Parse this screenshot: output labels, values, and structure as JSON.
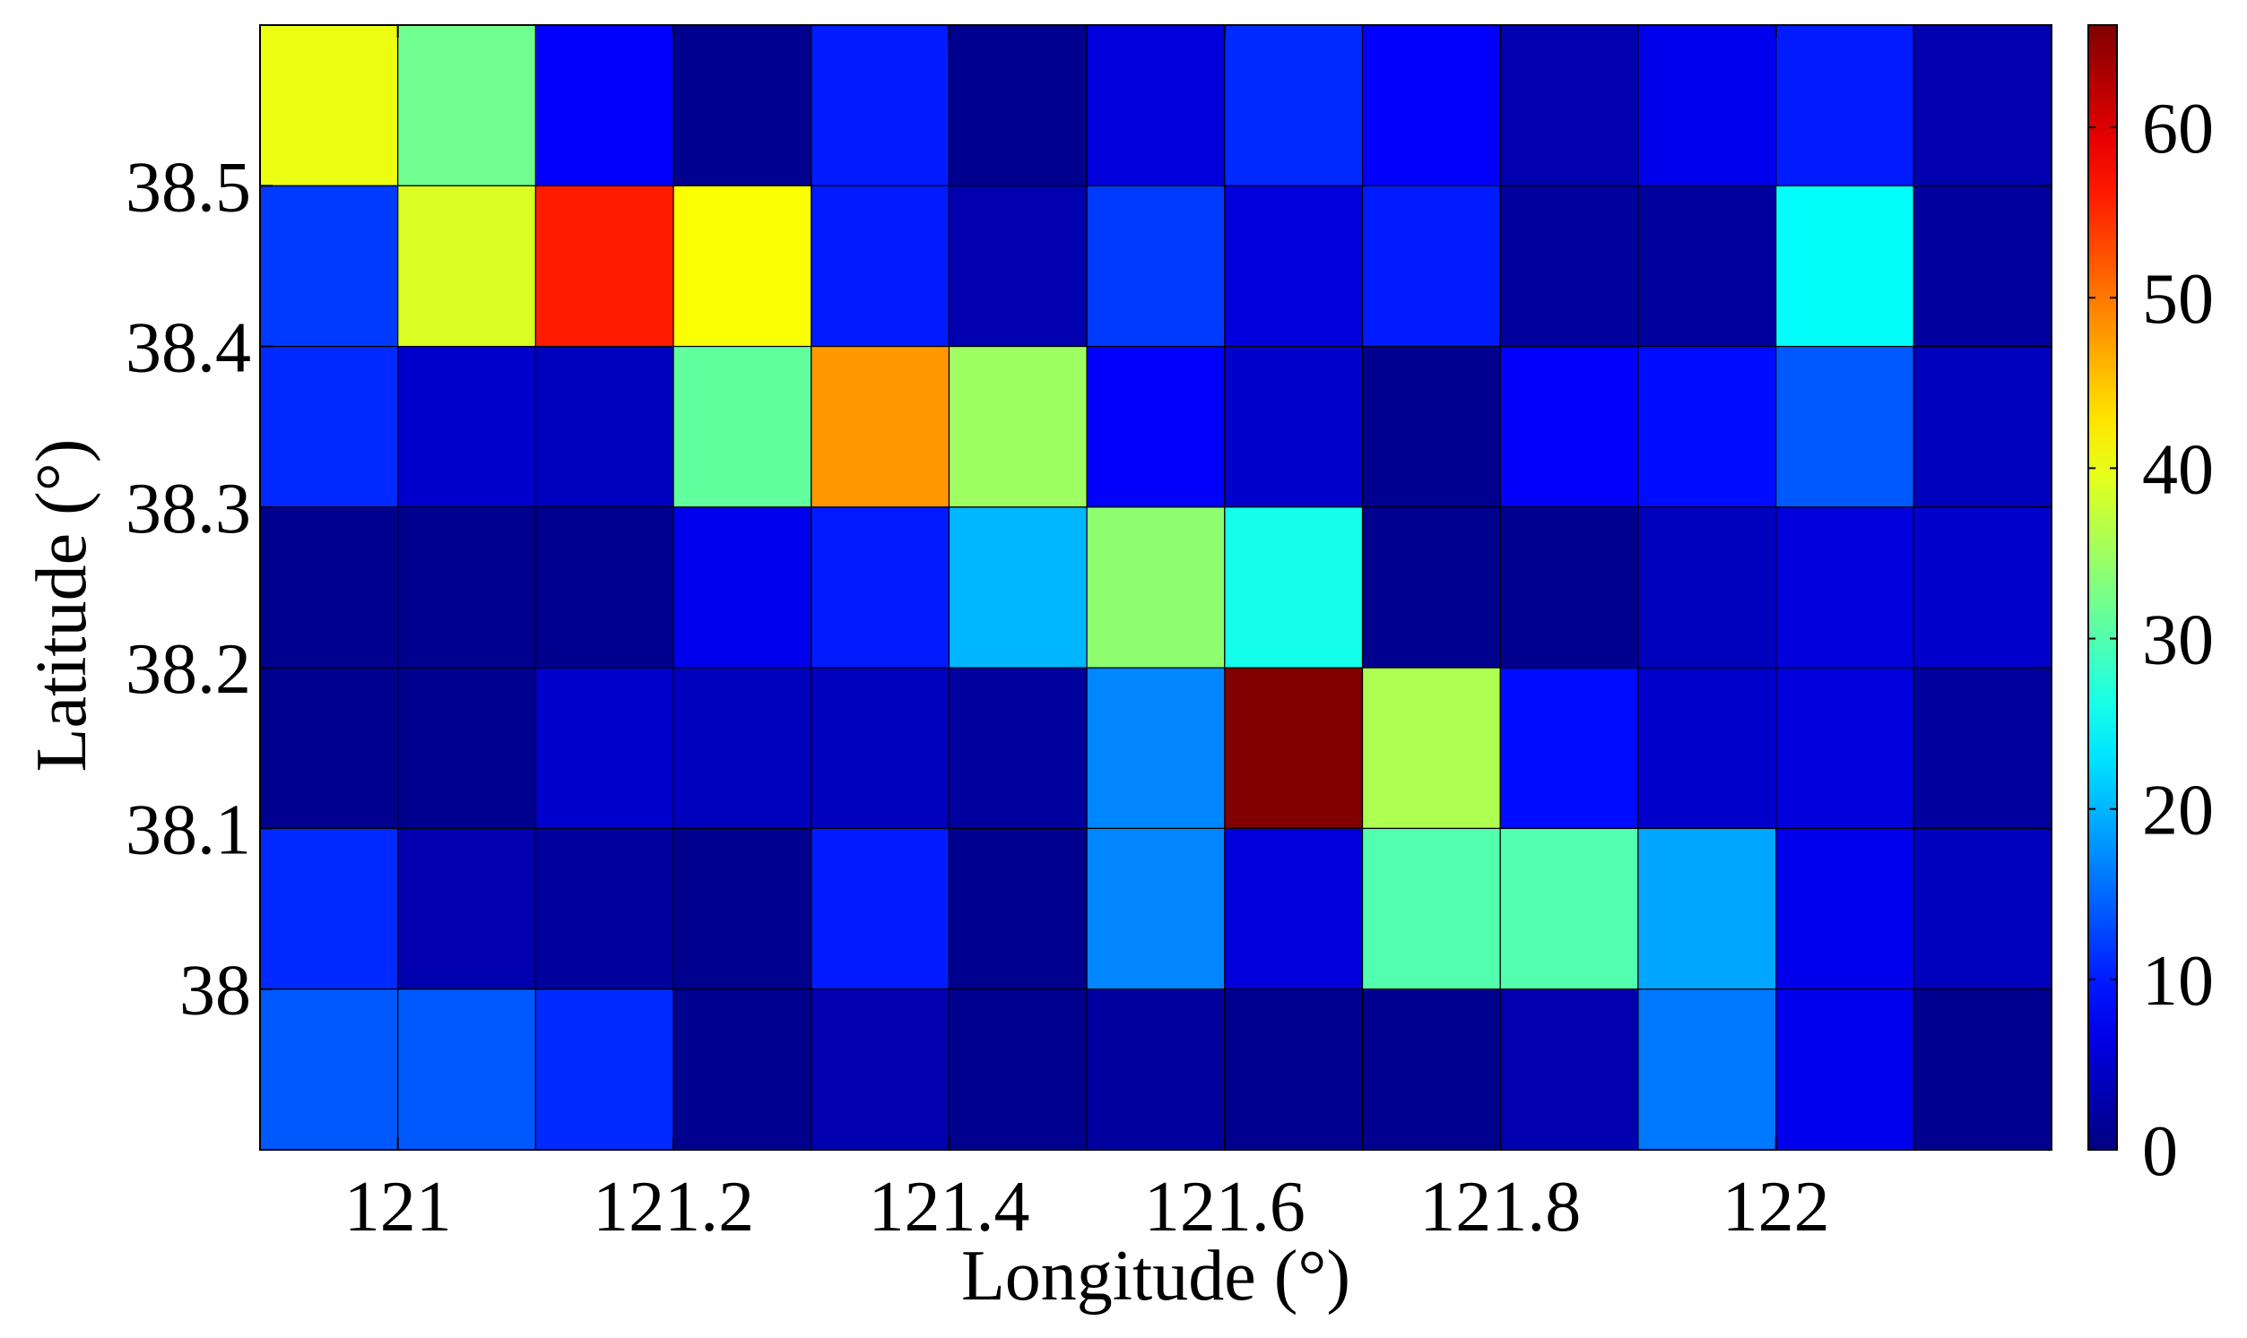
{
  "chart_data": {
    "type": "heatmap",
    "title": "",
    "xlabel": "Longitude (°)",
    "ylabel": "Latitude (°)",
    "x_edges": [
      120.9,
      121.0,
      121.1,
      121.2,
      121.3,
      121.4,
      121.5,
      121.6,
      121.7,
      121.8,
      121.9,
      122.0,
      122.1,
      122.2
    ],
    "y_edges": [
      37.9,
      38.0,
      38.1,
      38.2,
      38.3,
      38.4,
      38.5,
      38.6
    ],
    "xlim": [
      120.9,
      122.2
    ],
    "ylim": [
      37.9,
      38.6
    ],
    "xticks": [
      121.0,
      121.2,
      121.4,
      121.6,
      121.8,
      122.0
    ],
    "xtick_labels": [
      "121",
      "121.2",
      "121.4",
      "121.6",
      "121.8",
      "122"
    ],
    "yticks": [
      38.0,
      38.1,
      38.2,
      38.3,
      38.4,
      38.5
    ],
    "ytick_labels": [
      "38",
      "38.1",
      "38.2",
      "38.3",
      "38.4",
      "38.5"
    ],
    "values_rows_top_to_bottom": [
      [
        40,
        32,
        8,
        1,
        10,
        1,
        6,
        11,
        8,
        3,
        7,
        10,
        3
      ],
      [
        12,
        39,
        56,
        41,
        10,
        3,
        12,
        6,
        10,
        2,
        2,
        25,
        2
      ],
      [
        11,
        5,
        4,
        31,
        48,
        35,
        8,
        5,
        1,
        8,
        9,
        14,
        4
      ],
      [
        1,
        1,
        1,
        7,
        10,
        20,
        34,
        26,
        1,
        1,
        4,
        6,
        5
      ],
      [
        1,
        1,
        5,
        4,
        4,
        2,
        17,
        66,
        36,
        9,
        5,
        6,
        2
      ],
      [
        11,
        3,
        2,
        1,
        10,
        1,
        17,
        6,
        30,
        30,
        19,
        7,
        4
      ],
      [
        14,
        14,
        11,
        1,
        3,
        1,
        2,
        1,
        1,
        3,
        16,
        7,
        1
      ]
    ],
    "colorbar": {
      "colormap": "jet",
      "range": [
        0,
        66
      ],
      "ticks": [
        0,
        10,
        20,
        30,
        40,
        50,
        60
      ],
      "tick_labels": [
        "0",
        "10",
        "20",
        "30",
        "40",
        "50",
        "60"
      ]
    },
    "grid": false,
    "cell_border_color": "#000000"
  }
}
